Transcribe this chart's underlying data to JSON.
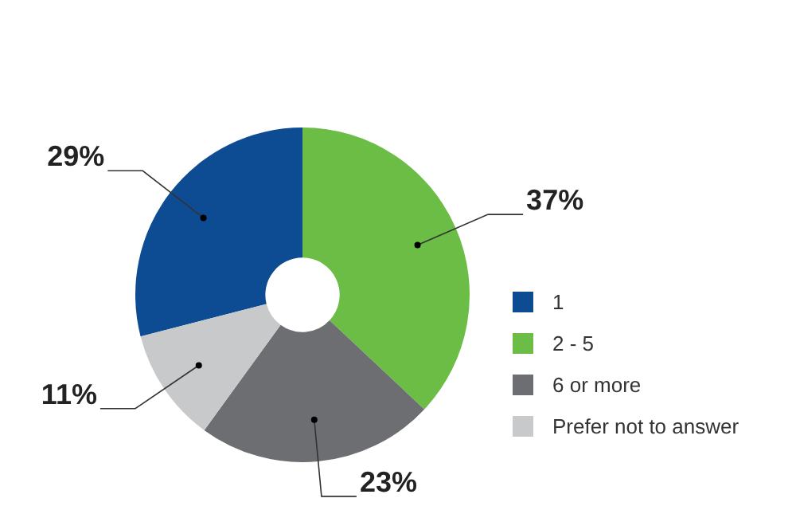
{
  "chart_data": {
    "type": "donut",
    "categories": [
      "1",
      "2 - 5",
      "6 or more",
      "Prefer not to answer"
    ],
    "values": [
      29,
      37,
      23,
      11
    ],
    "colors": [
      "#0d4c92",
      "#6cbd45",
      "#6d6e71",
      "#c8c9cb"
    ],
    "value_labels": [
      "29%",
      "37%",
      "23%",
      "11%"
    ],
    "legend": "right"
  }
}
